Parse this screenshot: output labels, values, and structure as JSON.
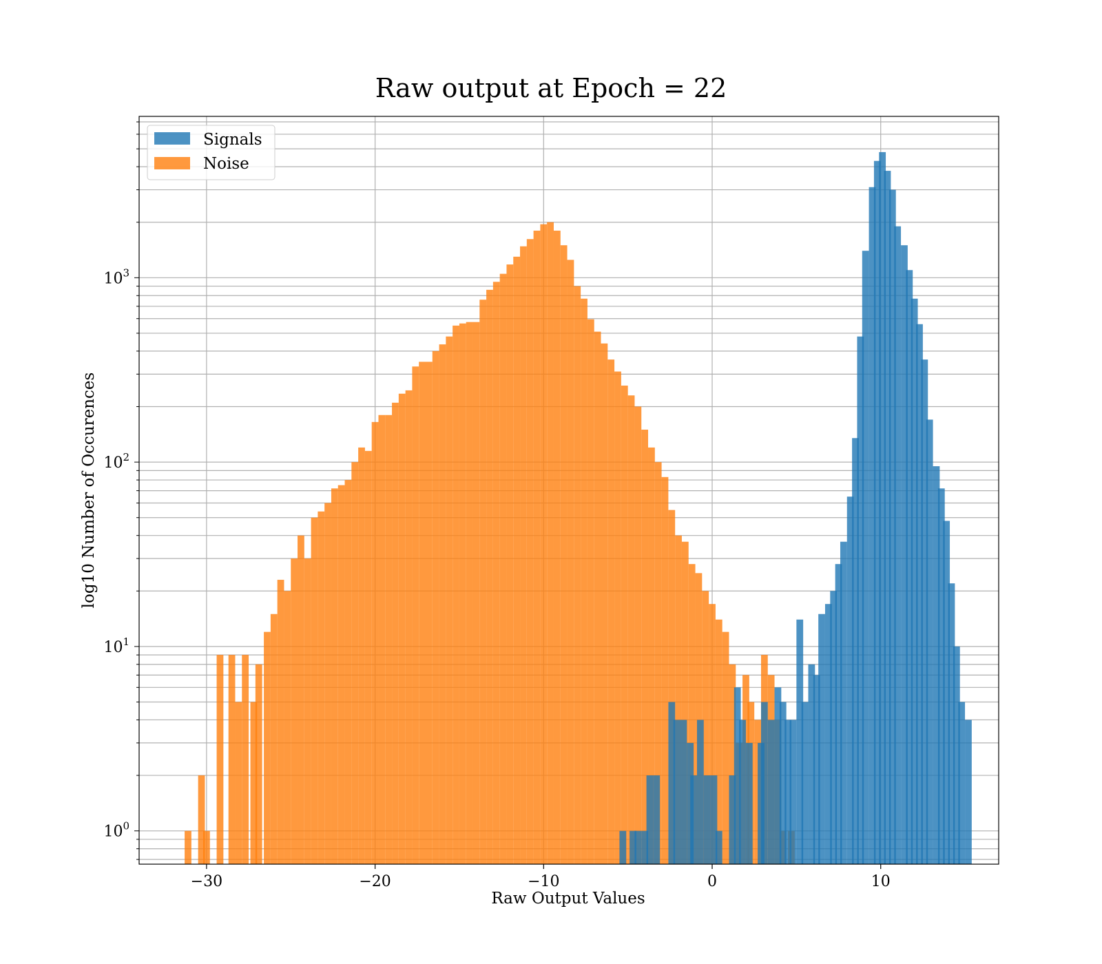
{
  "chart_data": {
    "type": "bar",
    "title": "Raw output at Epoch = 22",
    "xlabel": "Raw Output Values",
    "ylabel": "log10 Number of Occurences",
    "yscale": "log",
    "xlim": [
      -34,
      17
    ],
    "ylim": [
      0.66,
      7500
    ],
    "xticks": [
      -30,
      -20,
      -10,
      0,
      10
    ],
    "xtick_labels": [
      "−30",
      "−20",
      "−10",
      "0",
      "10"
    ],
    "yticks": [
      1,
      10,
      100,
      1000
    ],
    "ytick_labels": [
      {
        "base": "10",
        "exp": "0"
      },
      {
        "base": "10",
        "exp": "1"
      },
      {
        "base": "10",
        "exp": "2"
      },
      {
        "base": "10",
        "exp": "3"
      }
    ],
    "grid": true,
    "legend_position": "upper-left",
    "series": [
      {
        "name": "Signals",
        "color": "#1f77b4",
        "opacity": 0.8,
        "bins": [
          [
            -5.5,
            1
          ],
          [
            -4.9,
            1
          ],
          [
            -4.6,
            1
          ],
          [
            -4.2,
            1
          ],
          [
            -3.9,
            2
          ],
          [
            -3.5,
            2
          ],
          [
            -2.6,
            5
          ],
          [
            -2.3,
            4
          ],
          [
            -1.9,
            4
          ],
          [
            -1.5,
            3
          ],
          [
            -1.3,
            2
          ],
          [
            -0.9,
            4
          ],
          [
            -0.5,
            2
          ],
          [
            -0.1,
            2
          ],
          [
            0.2,
            1
          ],
          [
            1.0,
            2
          ],
          [
            1.3,
            6
          ],
          [
            1.6,
            4
          ],
          [
            2.0,
            3
          ],
          [
            2.7,
            3
          ],
          [
            2.9,
            5
          ],
          [
            3.3,
            4
          ],
          [
            3.7,
            6
          ],
          [
            4.0,
            5
          ],
          [
            4.3,
            4
          ],
          [
            4.6,
            4
          ],
          [
            5.0,
            14
          ],
          [
            5.3,
            5
          ],
          [
            5.7,
            8
          ],
          [
            6.0,
            7
          ],
          [
            6.3,
            15
          ],
          [
            6.7,
            17
          ],
          [
            7.0,
            20
          ],
          [
            7.3,
            28
          ],
          [
            7.6,
            37
          ],
          [
            8.0,
            65
          ],
          [
            8.3,
            135
          ],
          [
            8.6,
            480
          ],
          [
            8.9,
            1400
          ],
          [
            9.3,
            3100
          ],
          [
            9.6,
            4300
          ],
          [
            9.9,
            4800
          ],
          [
            10.2,
            3800
          ],
          [
            10.5,
            3000
          ],
          [
            10.8,
            1900
          ],
          [
            11.2,
            1500
          ],
          [
            11.5,
            1100
          ],
          [
            11.8,
            770
          ],
          [
            12.1,
            560
          ],
          [
            12.4,
            360
          ],
          [
            12.7,
            170
          ],
          [
            13.1,
            95
          ],
          [
            13.4,
            72
          ],
          [
            13.7,
            48
          ],
          [
            14.0,
            22
          ],
          [
            14.3,
            10
          ],
          [
            14.6,
            5
          ],
          [
            15.0,
            4
          ]
        ]
      },
      {
        "name": "Noise",
        "color": "#ff7f0e",
        "opacity": 0.8,
        "bins": [
          [
            -31.3,
            1
          ],
          [
            -30.5,
            2
          ],
          [
            -30.2,
            1
          ],
          [
            -29.4,
            9
          ],
          [
            -28.7,
            9
          ],
          [
            -28.3,
            5
          ],
          [
            -27.9,
            9
          ],
          [
            -27.4,
            5
          ],
          [
            -27.1,
            8
          ],
          [
            -26.6,
            12
          ],
          [
            -26.2,
            15
          ],
          [
            -25.8,
            23
          ],
          [
            -25.4,
            20
          ],
          [
            -25.0,
            30
          ],
          [
            -24.6,
            40
          ],
          [
            -24.2,
            30
          ],
          [
            -23.8,
            50
          ],
          [
            -23.4,
            54
          ],
          [
            -23.0,
            60
          ],
          [
            -22.6,
            72
          ],
          [
            -22.2,
            75
          ],
          [
            -21.8,
            80
          ],
          [
            -21.4,
            100
          ],
          [
            -21.0,
            120
          ],
          [
            -20.6,
            115
          ],
          [
            -20.2,
            165
          ],
          [
            -19.8,
            180
          ],
          [
            -19.4,
            180
          ],
          [
            -19.0,
            210
          ],
          [
            -18.6,
            235
          ],
          [
            -18.2,
            245
          ],
          [
            -17.8,
            330
          ],
          [
            -17.4,
            350
          ],
          [
            -17.0,
            350
          ],
          [
            -16.6,
            400
          ],
          [
            -16.2,
            435
          ],
          [
            -15.8,
            480
          ],
          [
            -15.4,
            550
          ],
          [
            -15.0,
            565
          ],
          [
            -14.6,
            575
          ],
          [
            -14.2,
            575
          ],
          [
            -13.8,
            760
          ],
          [
            -13.4,
            860
          ],
          [
            -13.0,
            950
          ],
          [
            -12.6,
            1050
          ],
          [
            -12.2,
            1180
          ],
          [
            -11.8,
            1300
          ],
          [
            -11.4,
            1480
          ],
          [
            -11.0,
            1620
          ],
          [
            -10.6,
            1800
          ],
          [
            -10.2,
            1950
          ],
          [
            -9.8,
            2000
          ],
          [
            -9.4,
            1800
          ],
          [
            -9.0,
            1500
          ],
          [
            -8.6,
            1250
          ],
          [
            -8.2,
            900
          ],
          [
            -7.8,
            770
          ],
          [
            -7.4,
            595
          ],
          [
            -7.0,
            510
          ],
          [
            -6.6,
            440
          ],
          [
            -6.2,
            360
          ],
          [
            -5.8,
            310
          ],
          [
            -5.4,
            260
          ],
          [
            -5.0,
            230
          ],
          [
            -4.6,
            200
          ],
          [
            -4.2,
            150
          ],
          [
            -3.8,
            120
          ],
          [
            -3.4,
            100
          ],
          [
            -3.0,
            83
          ],
          [
            -2.6,
            55
          ],
          [
            -2.2,
            40
          ],
          [
            -1.8,
            37
          ],
          [
            -1.4,
            28
          ],
          [
            -1.0,
            25
          ],
          [
            -0.6,
            20
          ],
          [
            -0.2,
            17
          ],
          [
            0.2,
            14
          ],
          [
            0.6,
            12
          ],
          [
            1.0,
            8
          ],
          [
            1.4,
            3
          ],
          [
            1.8,
            7
          ],
          [
            2.1,
            5
          ],
          [
            2.5,
            4
          ],
          [
            2.9,
            9
          ],
          [
            3.3,
            7
          ],
          [
            3.7,
            4
          ],
          [
            4.0,
            1
          ],
          [
            4.5,
            1
          ]
        ]
      }
    ]
  }
}
